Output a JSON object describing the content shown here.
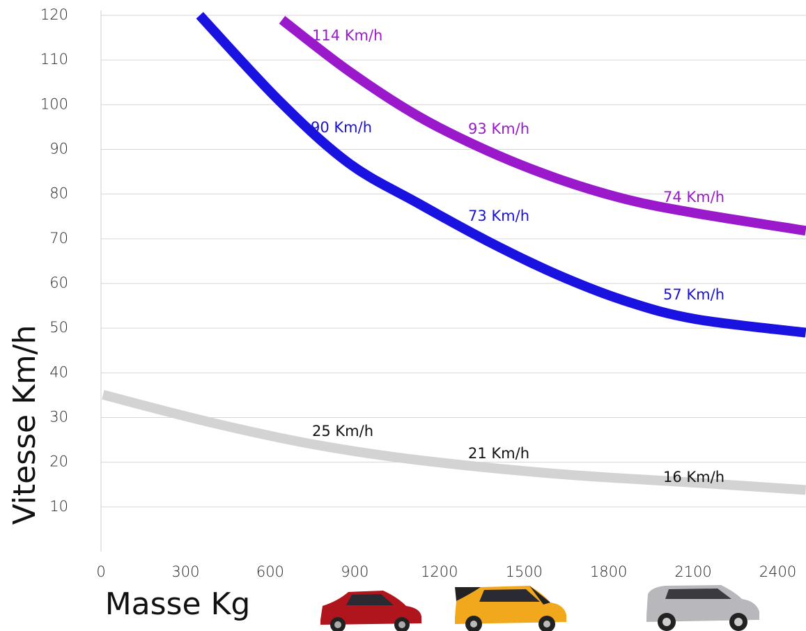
{
  "chart_data": {
    "type": "line",
    "x_label": "Masse Kg",
    "y_label": "Vitesse Km/h",
    "xlim": [
      0,
      2500
    ],
    "ylim": [
      0,
      120
    ],
    "xticks": [
      0,
      300,
      600,
      900,
      1200,
      1500,
      1800,
      2100,
      2400
    ],
    "yticks": [
      10,
      20,
      30,
      40,
      50,
      60,
      70,
      80,
      90,
      100,
      110,
      120
    ],
    "grid": true,
    "series": [
      {
        "color": "#9a1acb",
        "label_color": "#9a1acb",
        "x": [
          642,
          877,
          1123,
          1370,
          1617,
          1864,
          2111,
          2499
        ],
        "values": [
          119,
          107.6,
          97.5,
          89.7,
          83.5,
          78.8,
          75.7,
          71.8
        ],
        "labels": [
          "114 Km/h",
          "93 Km/h",
          "74 Km/h"
        ]
      },
      {
        "color": "#1a12e0",
        "label_color": "#1a12d0",
        "x": [
          350,
          630,
          877,
          1123,
          1370,
          1617,
          1864,
          2111,
          2499
        ],
        "values": [
          120,
          101,
          87,
          78,
          69.5,
          62,
          56,
          52,
          49
        ],
        "labels": [
          "90 Km/h",
          "73 Km/h",
          "57 Km/h"
        ]
      },
      {
        "color": "#d3d3d3",
        "label_color": "#111111",
        "x": [
          7,
          383,
          753,
          1123,
          1617,
          2111,
          2499
        ],
        "values": [
          35.1,
          29,
          24,
          20.5,
          17.4,
          15.4,
          13.8
        ],
        "labels": [
          "25 Km/h",
          "21 Km/h",
          "16 Km/h"
        ]
      }
    ]
  }
}
